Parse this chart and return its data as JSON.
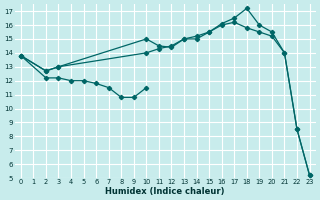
{
  "xlabel": "Humidex (Indice chaleur)",
  "bg_color": "#c8ecec",
  "grid_color": "#ffffff",
  "line_color": "#006666",
  "xlim": [
    -0.5,
    23.5
  ],
  "ylim": [
    5,
    17.5
  ],
  "xticks": [
    0,
    1,
    2,
    3,
    4,
    5,
    6,
    7,
    8,
    9,
    10,
    11,
    12,
    13,
    14,
    15,
    16,
    17,
    18,
    19,
    20,
    21,
    22,
    23
  ],
  "yticks": [
    5,
    6,
    7,
    8,
    9,
    10,
    11,
    12,
    13,
    14,
    15,
    16,
    17
  ],
  "line1_x": [
    0,
    2,
    3,
    10,
    11,
    12,
    13,
    14,
    15,
    16,
    17,
    18,
    19,
    20,
    21,
    22,
    23
  ],
  "line1_y": [
    13.8,
    12.7,
    13.0,
    15.0,
    14.5,
    14.4,
    15.0,
    15.0,
    15.5,
    16.1,
    16.5,
    17.2,
    16.0,
    15.5,
    14.0,
    8.5,
    5.2
  ],
  "line2_x": [
    0,
    2,
    3,
    10,
    11,
    12,
    13,
    14,
    15,
    16,
    17,
    18,
    19,
    20,
    21,
    22,
    23
  ],
  "line2_y": [
    13.8,
    12.7,
    13.0,
    14.0,
    14.3,
    14.5,
    15.0,
    15.2,
    15.5,
    16.0,
    16.2,
    15.8,
    15.5,
    15.2,
    14.0,
    8.5,
    5.2
  ],
  "line3_x": [
    0,
    2,
    3,
    4,
    5,
    6,
    7,
    8,
    9,
    10
  ],
  "line3_y": [
    13.8,
    12.2,
    12.2,
    12.0,
    12.0,
    11.8,
    11.5,
    10.8,
    10.8,
    11.5
  ]
}
